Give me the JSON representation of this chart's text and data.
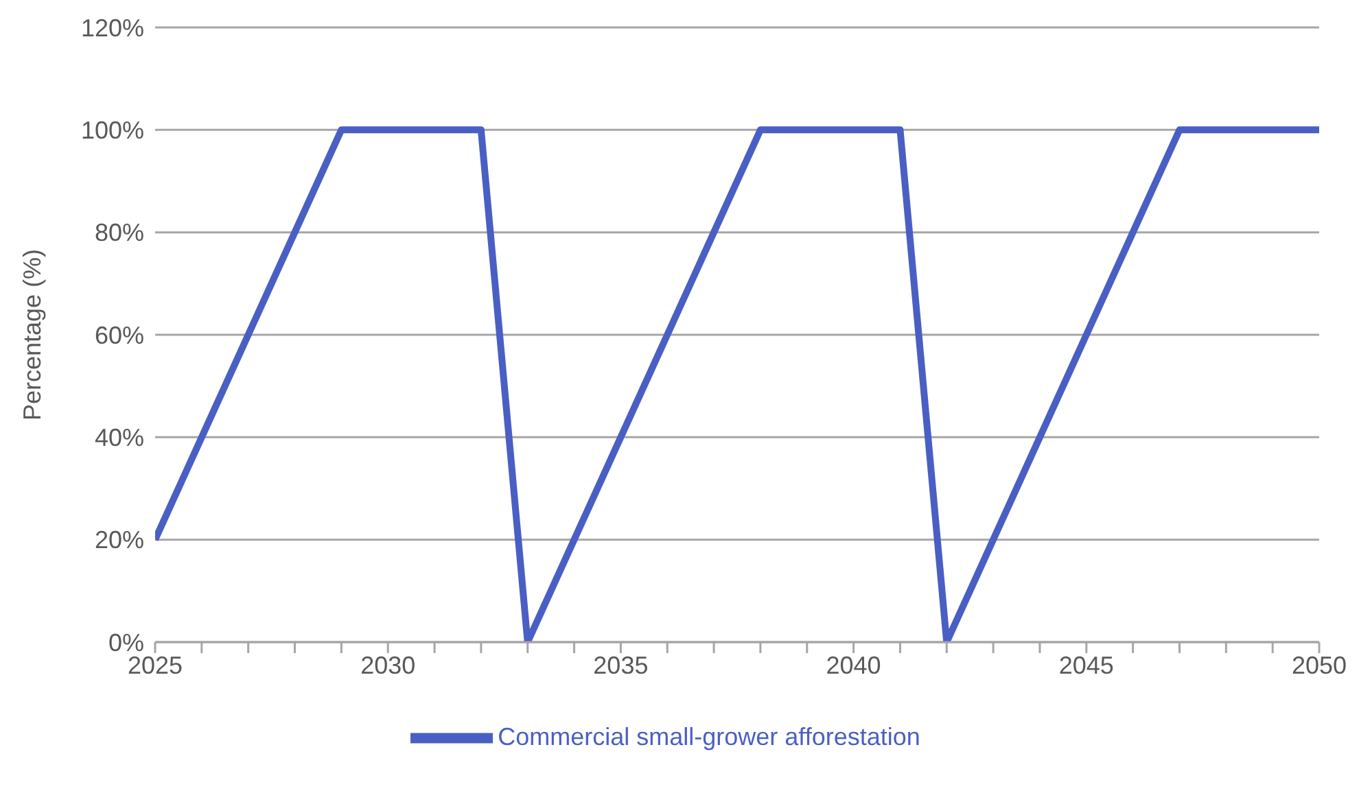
{
  "chart_data": {
    "type": "line",
    "ylabel": "Percentage (%)",
    "x": [
      2025,
      2026,
      2027,
      2028,
      2029,
      2030,
      2031,
      2032,
      2033,
      2034,
      2035,
      2036,
      2037,
      2038,
      2039,
      2040,
      2041,
      2042,
      2043,
      2044,
      2045,
      2046,
      2047,
      2048,
      2049,
      2050
    ],
    "series": [
      {
        "name": "Commercial small-grower afforestation",
        "color": "#4a5fc4",
        "values": [
          20,
          40,
          60,
          80,
          100,
          100,
          100,
          100,
          0,
          20,
          40,
          60,
          80,
          100,
          100,
          100,
          100,
          0,
          20,
          40,
          60,
          80,
          100,
          100,
          100,
          100
        ]
      }
    ],
    "xlim": [
      2025,
      2050
    ],
    "xticks": [
      2025,
      {
        "value": 2026,
        "label": null
      },
      {
        "value": 2027,
        "label": null
      },
      {
        "value": 2028,
        "label": null
      },
      {
        "value": 2029,
        "label": null
      },
      2030,
      {
        "value": 2031,
        "label": null
      },
      {
        "value": 2032,
        "label": null
      },
      {
        "value": 2033,
        "label": null
      },
      {
        "value": 2034,
        "label": null
      },
      2035,
      {
        "value": 2036,
        "label": null
      },
      {
        "value": 2037,
        "label": null
      },
      {
        "value": 2038,
        "label": null
      },
      {
        "value": 2039,
        "label": null
      },
      2040,
      {
        "value": 2041,
        "label": null
      },
      {
        "value": 2042,
        "label": null
      },
      {
        "value": 2043,
        "label": null
      },
      {
        "value": 2044,
        "label": null
      },
      2045,
      {
        "value": 2046,
        "label": null
      },
      {
        "value": 2047,
        "label": null
      },
      {
        "value": 2048,
        "label": null
      },
      {
        "value": 2049,
        "label": null
      },
      2050
    ],
    "ylim": [
      0,
      120
    ],
    "yticks": [
      {
        "value": 0,
        "label": "0%"
      },
      {
        "value": 20,
        "label": "20%"
      },
      {
        "value": 40,
        "label": "40%"
      },
      {
        "value": 60,
        "label": "60%"
      },
      {
        "value": 80,
        "label": "80%"
      },
      {
        "value": 100,
        "label": "100%"
      },
      {
        "value": 120,
        "label": "120%"
      }
    ],
    "grid": "y",
    "legend": "bottom",
    "marker": "none",
    "line_style": "solid"
  }
}
